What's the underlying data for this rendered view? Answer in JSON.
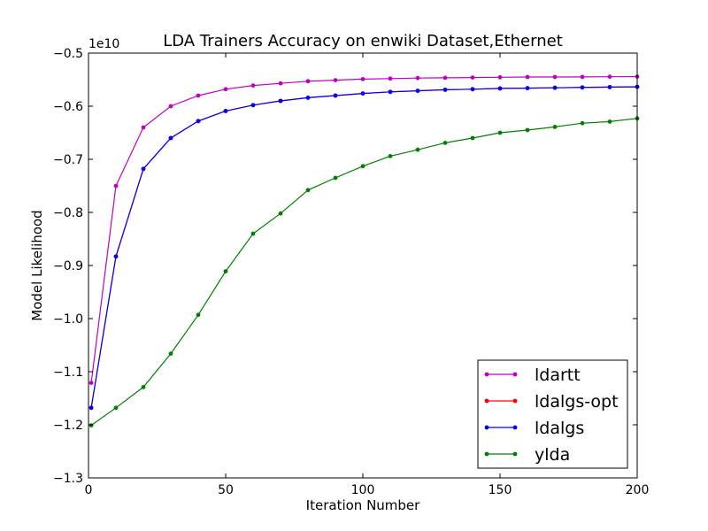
{
  "chart_data": {
    "type": "line",
    "title": "LDA Trainers Accuracy on enwiki Dataset,Ethernet",
    "xlabel": "Iteration Number",
    "ylabel": "Model Likelihood",
    "y_offset_label": "1e10",
    "xlim": [
      0,
      200
    ],
    "ylim": [
      -1.3,
      -0.5
    ],
    "x_ticks": [
      0,
      50,
      100,
      150,
      200
    ],
    "x_tick_labels": [
      "0",
      "50",
      "100",
      "150",
      "200"
    ],
    "y_ticks": [
      -0.5,
      -0.6,
      -0.7,
      -0.8,
      -0.9,
      -1.0,
      -1.1,
      -1.2,
      -1.3
    ],
    "y_tick_labels": [
      "−0.5",
      "−0.6",
      "−0.7",
      "−0.8",
      "−0.9",
      "−1.0",
      "−1.1",
      "−1.2",
      "−1.3"
    ],
    "grid": false,
    "legend_position": "lower-right",
    "x": [
      1,
      10,
      20,
      30,
      40,
      50,
      60,
      70,
      80,
      90,
      100,
      110,
      120,
      130,
      140,
      150,
      160,
      170,
      180,
      190,
      200
    ],
    "series": [
      {
        "name": "ldartt",
        "color": "#bf00bf",
        "values": [
          -1.121,
          -0.75,
          -0.64,
          -0.6,
          -0.58,
          -0.568,
          -0.561,
          -0.557,
          -0.553,
          -0.551,
          -0.549,
          -0.548,
          -0.547,
          -0.5465,
          -0.546,
          -0.5455,
          -0.545,
          -0.545,
          -0.5448,
          -0.5445,
          -0.5443
        ]
      },
      {
        "name": "ldalgs-opt",
        "color": "#ff0000",
        "values": [
          -1.168,
          -0.883,
          -0.718,
          -0.66,
          -0.628,
          -0.609,
          -0.598,
          -0.59,
          -0.584,
          -0.58,
          -0.576,
          -0.573,
          -0.571,
          -0.569,
          -0.568,
          -0.5665,
          -0.566,
          -0.5653,
          -0.5646,
          -0.564,
          -0.5635
        ]
      },
      {
        "name": "ldalgs",
        "color": "#0000ff",
        "values": [
          -1.168,
          -0.883,
          -0.718,
          -0.66,
          -0.628,
          -0.609,
          -0.598,
          -0.59,
          -0.584,
          -0.58,
          -0.576,
          -0.573,
          -0.571,
          -0.569,
          -0.568,
          -0.5665,
          -0.566,
          -0.5653,
          -0.5646,
          -0.564,
          -0.5635
        ]
      },
      {
        "name": "ylda",
        "color": "#008000",
        "values": [
          -1.201,
          -1.168,
          -1.129,
          -1.066,
          -0.993,
          -0.911,
          -0.84,
          -0.802,
          -0.758,
          -0.735,
          -0.713,
          -0.694,
          -0.682,
          -0.669,
          -0.66,
          -0.65,
          -0.645,
          -0.639,
          -0.632,
          -0.629,
          -0.623
        ]
      }
    ]
  }
}
